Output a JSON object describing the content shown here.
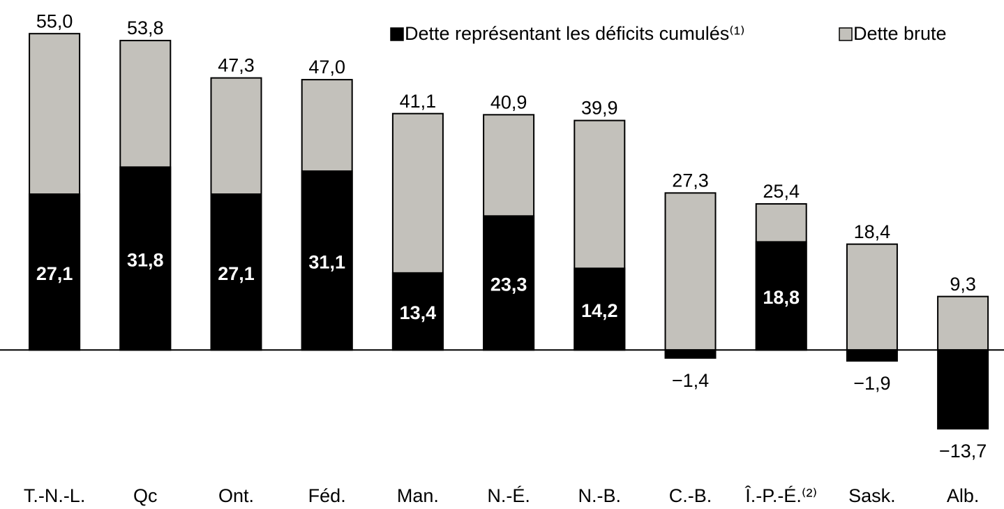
{
  "chart_data": {
    "type": "bar",
    "overlap": true,
    "categories": [
      "T.-N.-L.",
      "Qc",
      "Ont.",
      "Féd.",
      "Man.",
      "N.-É.",
      "N.-B.",
      "C.-B.",
      "Î.-P.-É.⁽²⁾",
      "Sask.",
      "Alb."
    ],
    "series": [
      {
        "name": "Dette représentant les déficits cumulés⁽¹⁾",
        "color": "#000000",
        "values": [
          27.1,
          31.8,
          27.1,
          31.1,
          13.4,
          23.3,
          14.2,
          -1.4,
          18.8,
          -1.9,
          -13.7
        ],
        "value_labels": [
          "27,1",
          "31,8",
          "27,1",
          "31,1",
          "13,4",
          "23,3",
          "14,2",
          "−1,4",
          "18,8",
          "−1,9",
          "−13,7"
        ]
      },
      {
        "name": "Dette brute",
        "color": "#c3c1bb",
        "values": [
          55.0,
          53.8,
          47.3,
          47.0,
          41.1,
          40.9,
          39.9,
          27.3,
          25.4,
          18.4,
          9.3
        ],
        "value_labels": [
          "55,0",
          "53,8",
          "47,3",
          "47,0",
          "41,1",
          "40,9",
          "39,9",
          "27,3",
          "25,4",
          "18,4",
          "9,3"
        ]
      }
    ],
    "ylim": [
      -20,
      60
    ],
    "legend": "top-right"
  }
}
